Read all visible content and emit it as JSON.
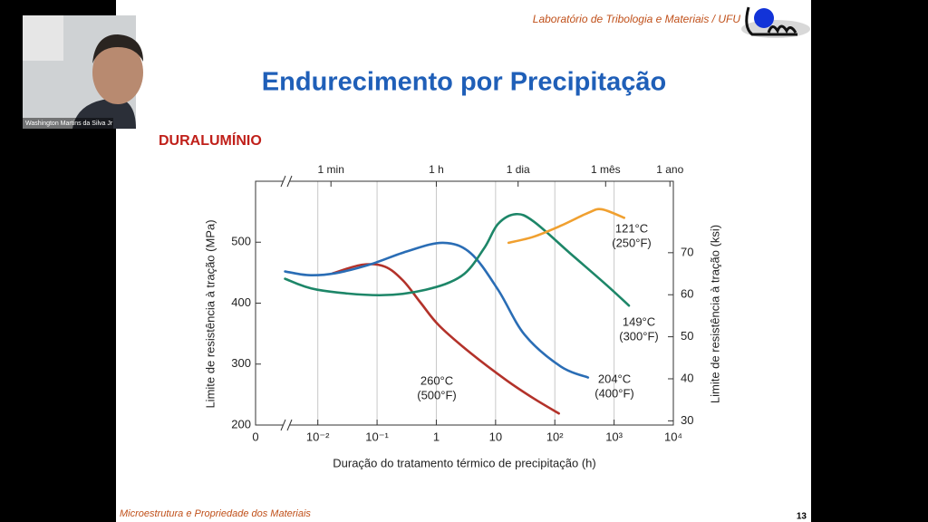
{
  "header": {
    "lab": "Laboratório de Tribologia e Materiais / UFU"
  },
  "webcam": {
    "name": "Washington Martins da Silva Jr"
  },
  "slide": {
    "title": "Endurecimento por Precipitação",
    "subtitle": "DURALUMÍNIO",
    "footer": "Microestrutura e Propriedade dos Materiais",
    "page": "13"
  },
  "chart_data": {
    "type": "line",
    "xscale": "log",
    "xlabel": "Duração do tratamento térmico de precipitação (h)",
    "ylabel": "Limite de resistência à tração (MPa)",
    "y2label": "Limite de resistência à tração (ksi)",
    "x_break_label": "0",
    "xlim": [
      0.00089,
      10000
    ],
    "xticks": [
      {
        "value": 0.01,
        "label": "10⁻²"
      },
      {
        "value": 0.1,
        "label": "10⁻¹"
      },
      1,
      10,
      {
        "value": 100,
        "label": "10²"
      },
      {
        "value": 1000,
        "label": "10³"
      },
      {
        "value": 10000,
        "label": "10⁴"
      }
    ],
    "x2ticks": [
      {
        "value": 0.01667,
        "label": "1 min"
      },
      {
        "value": 1,
        "label": "1 h"
      },
      {
        "value": 24,
        "label": "1 dia"
      },
      {
        "value": 720,
        "label": "1 mês"
      },
      {
        "value": 8760,
        "label": "1 ano"
      }
    ],
    "ylim": [
      200,
      600
    ],
    "yticks": [
      200,
      300,
      400,
      500
    ],
    "y2lim": [
      29,
      87
    ],
    "y2ticks": [
      30,
      40,
      50,
      60,
      70
    ],
    "grid": "x",
    "series": [
      {
        "name": "260°C",
        "name_f": "(500°F)",
        "color": "#b3322a",
        "x": [
          0.018,
          0.056,
          0.135,
          0.275,
          0.55,
          1.12,
          3.8,
          15.5,
          45,
          117
        ],
        "values": [
          449,
          463,
          460,
          437,
          400,
          363,
          318,
          273,
          243,
          219
        ]
      },
      {
        "name": "204°C",
        "name_f": "(400°F)",
        "color": "#2a6db5",
        "x": [
          0.0028,
          0.0069,
          0.0195,
          0.079,
          0.32,
          1.3,
          3.8,
          11,
          31,
          126,
          363
        ],
        "values": [
          452,
          446,
          449,
          464,
          485,
          499,
          482,
          422,
          348,
          296,
          278
        ]
      },
      {
        "name": "149°C",
        "name_f": "(300°F)",
        "color": "#1d8668",
        "x": [
          0.0028,
          0.0098,
          0.11,
          0.66,
          2.7,
          6.4,
          11,
          22,
          44,
          180,
          740,
          1780
        ],
        "values": [
          440,
          422,
          413,
          422,
          445,
          490,
          530,
          546,
          534,
          482,
          430,
          396
        ]
      },
      {
        "name": "121°C",
        "name_f": "(250°F)",
        "color": "#f0a030",
        "x": [
          16.6,
          44,
          126,
          363,
          617,
          1480
        ],
        "values": [
          499,
          509,
          527,
          548,
          554,
          540
        ]
      }
    ]
  }
}
